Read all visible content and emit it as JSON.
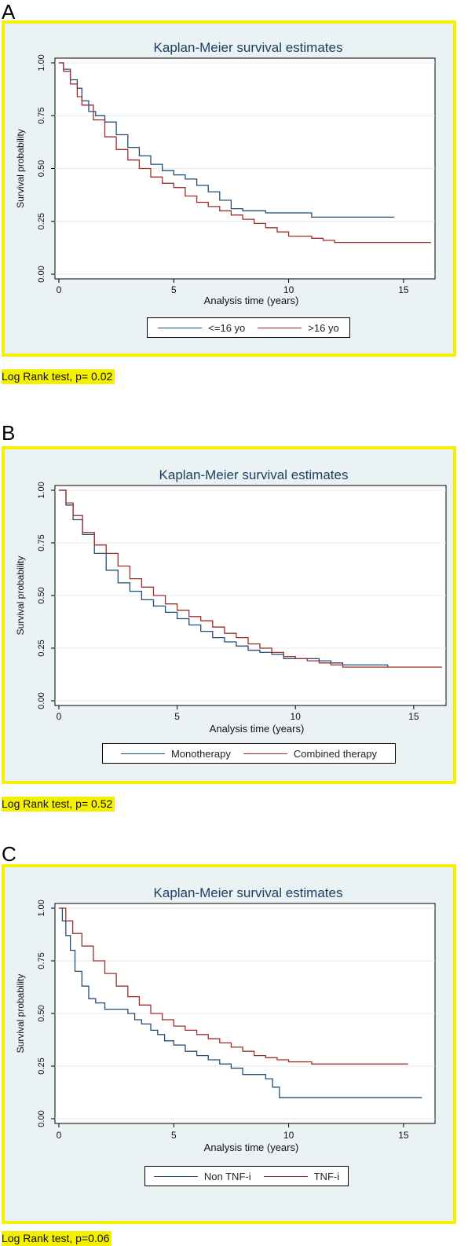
{
  "colors": {
    "frame": "#f4f000",
    "plot_bg": "#ffffff",
    "outer_bg": "#eaf2f3",
    "series_a": "#1f4e79",
    "series_b": "#a02c2c"
  },
  "panels": [
    {
      "letter": "A",
      "footnote": "Log Rank test, p= 0.02"
    },
    {
      "letter": "B",
      "footnote": "Log Rank test, p= 0.52"
    },
    {
      "letter": "C",
      "footnote": "Log Rank test, p=0.06"
    }
  ],
  "chart_data": [
    {
      "type": "line",
      "title": "Kaplan-Meier survival estimates",
      "xlabel": "Analysis time (years)",
      "ylabel": "Survival probability",
      "xlim": [
        0,
        16.2
      ],
      "ylim": [
        0,
        1
      ],
      "xticks": [
        "0",
        "5",
        "10",
        "15"
      ],
      "yticks": [
        "0.00",
        "0.25",
        "0.50",
        "0.75",
        "1.00"
      ],
      "grid": true,
      "legend": "bottom",
      "series": [
        {
          "name": "<=16 yo",
          "color": "#1f4e79",
          "x": [
            0,
            0.2,
            0.5,
            0.8,
            1.0,
            1.3,
            1.6,
            2.0,
            2.5,
            3.0,
            3.5,
            4.0,
            4.5,
            5.0,
            5.5,
            6.0,
            6.5,
            7.0,
            7.5,
            8.0,
            9.0,
            10.0,
            11.0,
            12.0,
            13.0,
            14.6
          ],
          "y": [
            1.0,
            0.97,
            0.92,
            0.88,
            0.82,
            0.77,
            0.75,
            0.72,
            0.66,
            0.6,
            0.56,
            0.52,
            0.49,
            0.47,
            0.45,
            0.42,
            0.39,
            0.35,
            0.31,
            0.3,
            0.29,
            0.29,
            0.27,
            0.27,
            0.27,
            0.27
          ]
        },
        {
          "name": ">16 yo",
          "color": "#a02c2c",
          "x": [
            0,
            0.2,
            0.5,
            0.8,
            1.0,
            1.5,
            2.0,
            2.5,
            3.0,
            3.5,
            4.0,
            4.5,
            5.0,
            5.5,
            6.0,
            6.5,
            7.0,
            7.5,
            8.0,
            8.5,
            9.0,
            9.5,
            10.0,
            10.5,
            11.0,
            11.5,
            12.0,
            13.0,
            14.0,
            15.0,
            16.2
          ],
          "y": [
            1.0,
            0.96,
            0.9,
            0.84,
            0.8,
            0.73,
            0.65,
            0.59,
            0.54,
            0.5,
            0.46,
            0.43,
            0.41,
            0.37,
            0.34,
            0.32,
            0.3,
            0.28,
            0.26,
            0.24,
            0.22,
            0.2,
            0.18,
            0.18,
            0.17,
            0.16,
            0.15,
            0.15,
            0.15,
            0.15,
            0.15
          ]
        }
      ]
    },
    {
      "type": "line",
      "title": "Kaplan-Meier survival estimates",
      "xlabel": "Analysis time (years)",
      "ylabel": "Survival probability",
      "xlim": [
        0,
        16.2
      ],
      "ylim": [
        0,
        1
      ],
      "xticks": [
        "0",
        "5",
        "10",
        "15"
      ],
      "yticks": [
        "0.00",
        "0.25",
        "0.50",
        "0.75",
        "1.00"
      ],
      "grid": true,
      "legend": "bottom",
      "series": [
        {
          "name": "Monotherapy",
          "color": "#1f4e79",
          "x": [
            0,
            0.3,
            0.6,
            1.0,
            1.5,
            2.0,
            2.5,
            3.0,
            3.5,
            4.0,
            4.5,
            5.0,
            5.5,
            6.0,
            6.5,
            7.0,
            7.5,
            8.0,
            8.5,
            9.0,
            9.5,
            10.0,
            10.5,
            11.0,
            11.5,
            12.0,
            13.0,
            13.9
          ],
          "y": [
            1.0,
            0.93,
            0.86,
            0.79,
            0.7,
            0.62,
            0.56,
            0.52,
            0.48,
            0.45,
            0.42,
            0.39,
            0.36,
            0.33,
            0.3,
            0.28,
            0.26,
            0.24,
            0.23,
            0.22,
            0.2,
            0.2,
            0.2,
            0.19,
            0.18,
            0.17,
            0.17,
            0.16
          ]
        },
        {
          "name": "Combined therapy",
          "color": "#a02c2c",
          "x": [
            0,
            0.3,
            0.6,
            1.0,
            1.5,
            2.0,
            2.5,
            3.0,
            3.5,
            4.0,
            4.5,
            5.0,
            5.5,
            6.0,
            6.5,
            7.0,
            7.5,
            8.0,
            8.5,
            9.0,
            9.5,
            10.0,
            10.5,
            11.0,
            11.5,
            12.0,
            13.0,
            14.0,
            15.0,
            16.2
          ],
          "y": [
            1.0,
            0.94,
            0.88,
            0.8,
            0.74,
            0.7,
            0.64,
            0.58,
            0.54,
            0.5,
            0.46,
            0.43,
            0.4,
            0.38,
            0.35,
            0.32,
            0.3,
            0.27,
            0.25,
            0.23,
            0.21,
            0.2,
            0.19,
            0.18,
            0.17,
            0.16,
            0.16,
            0.16,
            0.16,
            0.16
          ]
        }
      ]
    },
    {
      "type": "line",
      "title": "Kaplan-Meier survival estimates",
      "xlabel": "Analysis time (years)",
      "ylabel": "Survival probability",
      "xlim": [
        0,
        16.2
      ],
      "ylim": [
        0,
        1
      ],
      "xticks": [
        "0",
        "5",
        "10",
        "15"
      ],
      "yticks": [
        "0.00",
        "0.25",
        "0.50",
        "0.75",
        "1.00"
      ],
      "grid": true,
      "legend": "bottom",
      "series": [
        {
          "name": "Non TNF-i",
          "color": "#1f4e79",
          "x": [
            0,
            0.15,
            0.3,
            0.5,
            0.7,
            1.0,
            1.3,
            1.6,
            2.0,
            2.5,
            3.0,
            3.3,
            3.6,
            4.0,
            4.3,
            4.6,
            5.0,
            5.5,
            6.0,
            6.5,
            7.0,
            7.5,
            8.0,
            8.5,
            9.0,
            9.3,
            9.6,
            10.0,
            11.0,
            12.0,
            14.0,
            15.8
          ],
          "y": [
            1.0,
            0.94,
            0.87,
            0.8,
            0.7,
            0.63,
            0.57,
            0.55,
            0.52,
            0.52,
            0.5,
            0.47,
            0.45,
            0.42,
            0.4,
            0.37,
            0.35,
            0.32,
            0.3,
            0.28,
            0.26,
            0.24,
            0.21,
            0.21,
            0.19,
            0.15,
            0.1,
            0.1,
            0.1,
            0.1,
            0.1,
            0.1
          ]
        },
        {
          "name": "TNF-i",
          "color": "#a02c2c",
          "x": [
            0,
            0.3,
            0.6,
            1.0,
            1.5,
            2.0,
            2.5,
            3.0,
            3.5,
            4.0,
            4.5,
            5.0,
            5.5,
            6.0,
            6.5,
            7.0,
            7.5,
            8.0,
            8.5,
            9.0,
            9.5,
            10.0,
            10.5,
            11.0,
            11.5,
            12.0,
            13.0,
            14.0,
            15.2
          ],
          "y": [
            1.0,
            0.94,
            0.88,
            0.82,
            0.75,
            0.69,
            0.63,
            0.58,
            0.54,
            0.5,
            0.47,
            0.44,
            0.42,
            0.4,
            0.38,
            0.36,
            0.34,
            0.32,
            0.3,
            0.29,
            0.28,
            0.27,
            0.27,
            0.26,
            0.26,
            0.26,
            0.26,
            0.26,
            0.26
          ]
        }
      ]
    }
  ]
}
